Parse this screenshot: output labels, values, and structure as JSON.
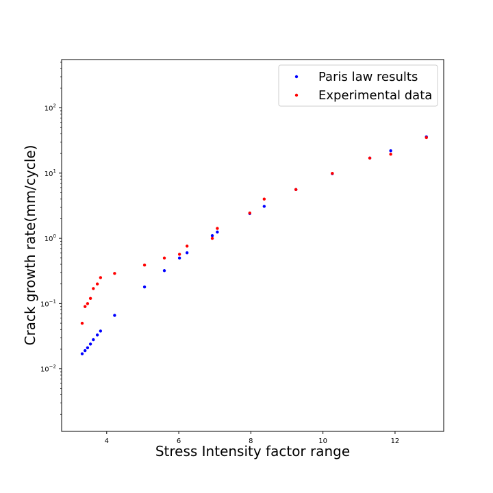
{
  "chart_data": {
    "type": "scatter",
    "xlabel": "Stress Intensity factor range",
    "ylabel": "Crack growth rate(mm/cycle)",
    "xlim": [
      2.75,
      13.35
    ],
    "ylim": [
      0.0011,
      550
    ],
    "yscale": "log",
    "xticks": [
      4,
      6,
      8,
      10,
      12
    ],
    "yticks": [
      0.01,
      0.1,
      1,
      10,
      100
    ],
    "ytick_labels": [
      {
        "base": "10",
        "exp": "−2"
      },
      {
        "base": "10",
        "exp": "−1"
      },
      {
        "base": "10",
        "exp": "0"
      },
      {
        "base": "10",
        "exp": "1"
      },
      {
        "base": "10",
        "exp": "2"
      }
    ],
    "grid": false,
    "legend_position": "top-right",
    "series": [
      {
        "name": "Paris law results",
        "color": "#0000ff",
        "x": [
          3.32,
          3.4,
          3.47,
          3.55,
          3.63,
          3.74,
          3.83,
          4.22,
          5.05,
          5.6,
          6.02,
          6.23,
          6.93,
          7.07,
          7.97,
          8.37,
          9.25,
          10.26,
          11.3,
          11.88,
          12.87
        ],
        "y": [
          0.017,
          0.019,
          0.021,
          0.024,
          0.028,
          0.033,
          0.038,
          0.066,
          0.18,
          0.32,
          0.5,
          0.6,
          1.1,
          1.25,
          2.4,
          3.1,
          5.6,
          9.8,
          17,
          22,
          36
        ]
      },
      {
        "name": "Experimental data",
        "color": "#ff0000",
        "x": [
          3.32,
          3.4,
          3.47,
          3.55,
          3.63,
          3.74,
          3.83,
          4.22,
          5.05,
          5.6,
          6.02,
          6.23,
          6.93,
          7.07,
          7.97,
          8.37,
          9.25,
          10.26,
          11.3,
          11.88,
          12.87
        ],
        "y": [
          0.05,
          0.09,
          0.1,
          0.12,
          0.17,
          0.2,
          0.25,
          0.29,
          0.39,
          0.5,
          0.57,
          0.76,
          1.0,
          1.42,
          2.45,
          4.0,
          5.6,
          9.9,
          17,
          19.5,
          35
        ]
      }
    ]
  }
}
